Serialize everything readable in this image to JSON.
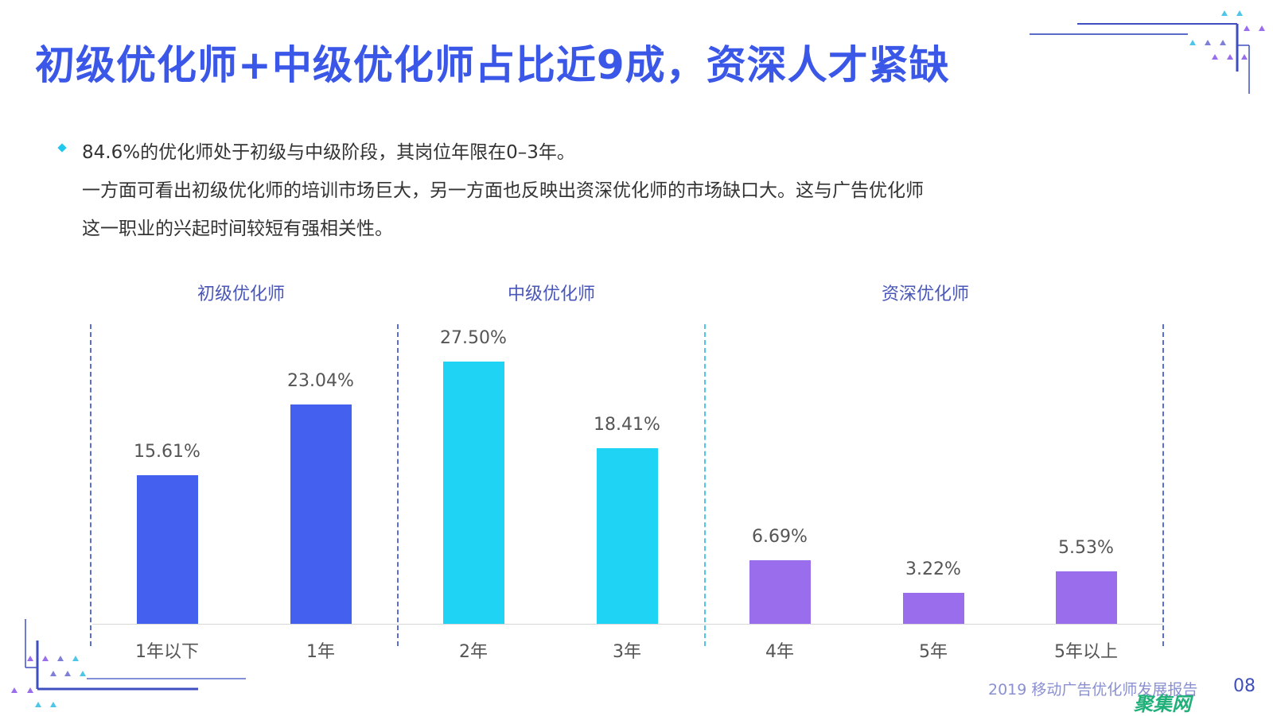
{
  "title": "初级优化师+中级优化师占比近9成，资深人才紧缺",
  "description": {
    "lines": [
      "84.6%的优化师处于初级与中级阶段，其岗位年限在0–3年。",
      "一方面可看出初级优化师的培训市场巨大，另一方面也反映出资深优化师的市场缺口大。这与广告优化师",
      "这一职业的兴起时间较短有强相关性。"
    ]
  },
  "chart_data": {
    "type": "bar",
    "categories": [
      "1年以下",
      "1年",
      "2年",
      "3年",
      "4年",
      "5年",
      "5年以上"
    ],
    "values": [
      15.61,
      23.04,
      27.5,
      18.41,
      6.69,
      3.22,
      5.53
    ],
    "value_labels": [
      "15.61%",
      "23.04%",
      "27.50%",
      "18.41%",
      "6.69%",
      "3.22%",
      "5.53%"
    ],
    "groups": [
      {
        "label": "初级优化师",
        "categories": [
          "1年以下",
          "1年"
        ],
        "color": "#4361ee"
      },
      {
        "label": "中级优化师",
        "categories": [
          "2年",
          "3年"
        ],
        "color": "#1fd3f5"
      },
      {
        "label": "资深优化师",
        "categories": [
          "4年",
          "5年",
          "5年以上"
        ],
        "color": "#9a6ded"
      }
    ],
    "ylim": [
      0,
      30
    ],
    "grid": false,
    "title": "",
    "xlabel": "",
    "ylabel": ""
  },
  "footer": {
    "report": "2019 移动广告优化师发展报告",
    "page": "08",
    "watermark": "聚集网"
  }
}
